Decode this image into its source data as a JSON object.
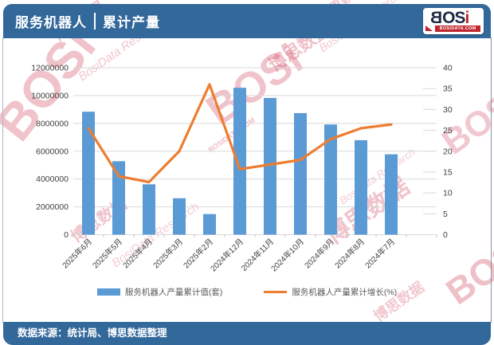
{
  "header": {
    "title_main": "服务机器人",
    "title_separator": "|",
    "title_sub": "累计产量",
    "logo": {
      "b": "B",
      "rest": "OS",
      "i": "i",
      "domain": "BOSIDATA.COM"
    }
  },
  "watermark": {
    "brand": "BOSi",
    "brand_cn": "博思数据",
    "brand_en": "BosiData Research",
    "domain": "BOSIDATA.COM"
  },
  "chart_data": {
    "type": "bar+line",
    "title": "服务机器人 | 累计产量",
    "categories": [
      "2025年6月",
      "2025年5月",
      "2025年4月",
      "2025年3月",
      "2025年2月",
      "2024年12月",
      "2024年11月",
      "2024年10月",
      "2024年9月",
      "2024年8月",
      "2024年7月"
    ],
    "series": [
      {
        "name": "服务机器人产量累计值(套)",
        "type": "bar",
        "axis": "left",
        "color": "#5b9bd5",
        "values": [
          8840000,
          5280000,
          3620000,
          2620000,
          1480000,
          10560000,
          9830000,
          8740000,
          7920000,
          6790000,
          5780000
        ]
      },
      {
        "name": "服务机器人产量累计增长(%)",
        "type": "line",
        "axis": "right",
        "color": "#ed7d31",
        "values": [
          25.5,
          14.0,
          12.6,
          20.0,
          36.0,
          15.7,
          16.8,
          17.9,
          22.9,
          25.5,
          26.4
        ]
      }
    ],
    "left_axis": {
      "min": 0,
      "max": 12000000,
      "step": 2000000
    },
    "right_axis": {
      "min": 0,
      "max": 40,
      "step": 5
    },
    "grid": true,
    "legend_position": "bottom"
  },
  "footer": {
    "text": "数据来源：统计局、博思数据整理"
  },
  "colors": {
    "header_bg": "#33689b",
    "bar": "#5b9bd5",
    "line": "#ed7d31",
    "grid": "#d9d9d9",
    "axis_text": "#404040",
    "legend_text": "#595959",
    "watermark": "#cf3d55",
    "logo_red": "#c0272d",
    "logo_navy": "#1b2a45"
  }
}
